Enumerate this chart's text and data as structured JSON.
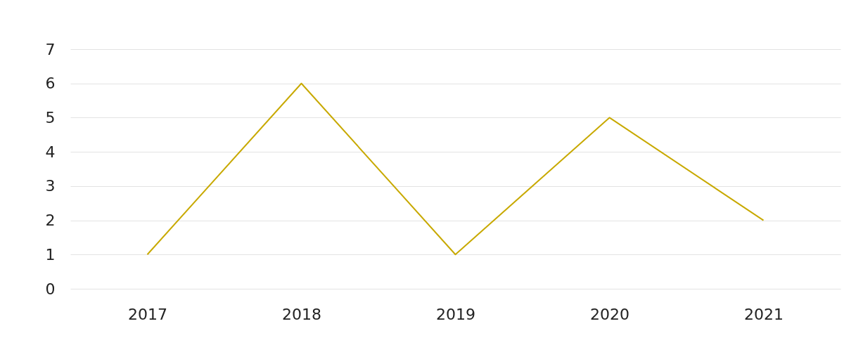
{
  "chart_data": {
    "type": "line",
    "categories": [
      "2017",
      "2018",
      "2019",
      "2020",
      "2021"
    ],
    "series": [
      {
        "color": "#c8a900",
        "values": [
          1,
          6,
          1,
          5,
          2
        ]
      }
    ],
    "ylim": [
      0,
      7
    ],
    "yticks": [
      0,
      1,
      2,
      3,
      4,
      5,
      6,
      7
    ],
    "grid": "y",
    "marker": "none",
    "line_style": "solid"
  }
}
